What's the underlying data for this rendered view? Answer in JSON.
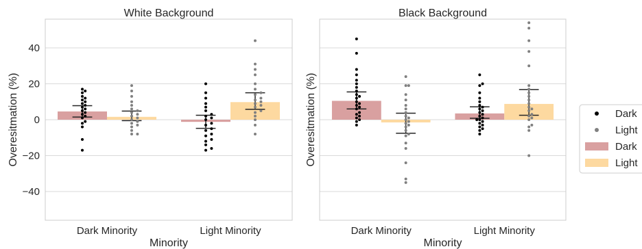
{
  "chart_data": [
    {
      "type": "bar",
      "title": "White Background",
      "xlabel": "Minority",
      "ylabel": "Overesitmation (%)",
      "ylim": [
        -56,
        56
      ],
      "yticks": [
        -40,
        -20,
        0,
        20,
        40
      ],
      "grid": true,
      "categories": [
        "Dark Minority",
        "Light Minority"
      ],
      "series": [
        {
          "name": "Dark",
          "color": "#d9a0a0",
          "dot_color": "#000000",
          "values": [
            4.6,
            -1.2
          ],
          "ci": [
            [
              1.5,
              7.8
            ],
            [
              -4.8,
              2.5
            ]
          ],
          "points": [
            [
              17,
              16,
              15,
              13,
              12,
              11,
              10,
              9,
              8,
              7,
              6,
              5,
              4,
              3,
              2,
              1,
              -1,
              -2,
              -4,
              -11,
              -17
            ],
            [
              20,
              15,
              12,
              9,
              7,
              5,
              3,
              2,
              1,
              0,
              -2,
              -3,
              -5,
              -6,
              -8,
              -9,
              -11,
              -12,
              -14,
              -16,
              -17
            ]
          ]
        },
        {
          "name": "Light",
          "color": "#fdd9a0",
          "dot_color": "#808080",
          "values": [
            1.6,
            9.8
          ],
          "ci": [
            [
              -0.5,
              4.8
            ],
            [
              5.8,
              15.0
            ]
          ],
          "points": [
            [
              19,
              16,
              13,
              10,
              8,
              6,
              5,
              4,
              3,
              2,
              1,
              0,
              -1,
              -2,
              -3,
              -4,
              -6,
              -8,
              -8
            ],
            [
              44,
              31,
              28,
              25,
              20,
              17,
              15,
              14,
              12,
              11,
              10,
              9,
              8,
              7,
              5,
              4,
              2,
              0,
              -3,
              -8
            ]
          ]
        }
      ]
    },
    {
      "type": "bar",
      "title": "Black Background",
      "xlabel": "Minority",
      "ylabel": "Overesitmation (%)",
      "ylim": [
        -56,
        56
      ],
      "yticks": [
        -40,
        -20,
        0,
        20,
        40
      ],
      "grid": true,
      "categories": [
        "Dark Minority",
        "Light Minority"
      ],
      "series": [
        {
          "name": "Dark",
          "color": "#d9a0a0",
          "dot_color": "#000000",
          "values": [
            10.5,
            3.5
          ],
          "ci": [
            [
              6.0,
              15.5
            ],
            [
              0.8,
              7.2
            ]
          ],
          "points": [
            [
              45,
              37,
              28,
              25,
              22,
              20,
              18,
              16,
              14,
              13,
              12,
              10,
              9,
              8,
              7,
              6,
              4,
              3,
              2,
              1,
              0,
              -1,
              -3
            ],
            [
              25,
              20,
              19,
              15,
              12,
              10,
              8,
              7,
              6,
              5,
              4,
              3,
              2,
              1,
              0,
              0,
              -1,
              -2,
              -3,
              -4,
              -5,
              -6,
              -8
            ]
          ]
        },
        {
          "name": "Light",
          "color": "#fdd9a0",
          "dot_color": "#808080",
          "values": [
            -1.5,
            8.8
          ],
          "ci": [
            [
              -7.5,
              3.6
            ],
            [
              2.5,
              16.8
            ]
          ],
          "points": [
            [
              24,
              19,
              19,
              14,
              11,
              8,
              6,
              4,
              2,
              1,
              0,
              -1,
              -2,
              -3,
              -4,
              -6,
              -8,
              -9,
              -13,
              -16,
              -24,
              -33,
              -35
            ],
            [
              54,
              51,
              44,
              38,
              30,
              19,
              17,
              15,
              13,
              11,
              9,
              7,
              6,
              5,
              3,
              2,
              1,
              0,
              -3,
              -4,
              -6,
              -20
            ]
          ]
        }
      ]
    }
  ],
  "legend": {
    "placement": "right",
    "items": [
      {
        "label": "Dark",
        "kind": "dot",
        "color": "#000000"
      },
      {
        "label": "Light",
        "kind": "dot",
        "color": "#808080"
      },
      {
        "label": "Dark",
        "kind": "patch",
        "color": "#d9a0a0"
      },
      {
        "label": "Light",
        "kind": "patch",
        "color": "#fdd9a0"
      }
    ]
  },
  "colors": {
    "grid": "#d9d9d9",
    "axis": "#cccccc",
    "text": "#262626",
    "errorbar": "#262626"
  }
}
